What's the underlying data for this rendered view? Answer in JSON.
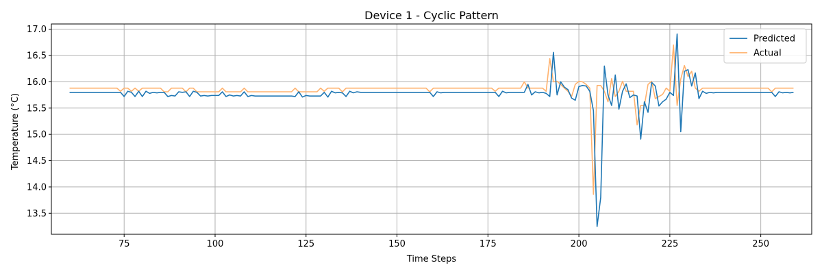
{
  "chart_data": {
    "type": "line",
    "title": "Device 1 - Cyclic Pattern",
    "xlabel": "Time Steps",
    "ylabel": "Temperature (°C)",
    "xlim": [
      55,
      264
    ],
    "ylim": [
      13.1,
      17.1
    ],
    "xticks": [
      75,
      100,
      125,
      150,
      175,
      200,
      225,
      250
    ],
    "yticks": [
      13.5,
      14.0,
      14.5,
      15.0,
      15.5,
      16.0,
      16.5,
      17.0
    ],
    "grid": true,
    "legend_position": "top-right",
    "series": [
      {
        "name": "Predicted",
        "color": "#1f77b4",
        "points": [
          [
            60,
            15.8
          ],
          [
            74,
            15.8
          ],
          [
            75,
            15.72
          ],
          [
            76,
            15.82
          ],
          [
            77,
            15.8
          ],
          [
            78,
            15.72
          ],
          [
            79,
            15.82
          ],
          [
            80,
            15.72
          ],
          [
            81,
            15.82
          ],
          [
            82,
            15.78
          ],
          [
            83,
            15.8
          ],
          [
            84,
            15.79
          ],
          [
            85,
            15.8
          ],
          [
            86,
            15.8
          ],
          [
            87,
            15.72
          ],
          [
            88,
            15.74
          ],
          [
            89,
            15.73
          ],
          [
            90,
            15.81
          ],
          [
            91,
            15.8
          ],
          [
            92,
            15.81
          ],
          [
            93,
            15.72
          ],
          [
            94,
            15.82
          ],
          [
            95,
            15.8
          ],
          [
            96,
            15.73
          ],
          [
            97,
            15.74
          ],
          [
            98,
            15.73
          ],
          [
            99,
            15.74
          ],
          [
            101,
            15.74
          ],
          [
            102,
            15.81
          ],
          [
            103,
            15.72
          ],
          [
            104,
            15.75
          ],
          [
            105,
            15.73
          ],
          [
            106,
            15.74
          ],
          [
            107,
            15.73
          ],
          [
            108,
            15.81
          ],
          [
            109,
            15.72
          ],
          [
            110,
            15.74
          ],
          [
            111,
            15.73
          ],
          [
            121,
            15.73
          ],
          [
            122,
            15.72
          ],
          [
            123,
            15.81
          ],
          [
            124,
            15.71
          ],
          [
            125,
            15.74
          ],
          [
            126,
            15.73
          ],
          [
            129,
            15.73
          ],
          [
            130,
            15.8
          ],
          [
            131,
            15.71
          ],
          [
            132,
            15.82
          ],
          [
            133,
            15.79
          ],
          [
            134,
            15.8
          ],
          [
            135,
            15.79
          ],
          [
            136,
            15.72
          ],
          [
            137,
            15.82
          ],
          [
            138,
            15.79
          ],
          [
            139,
            15.81
          ],
          [
            140,
            15.8
          ],
          [
            159,
            15.8
          ],
          [
            160,
            15.72
          ],
          [
            161,
            15.81
          ],
          [
            162,
            15.79
          ],
          [
            163,
            15.8
          ],
          [
            176,
            15.8
          ],
          [
            177,
            15.8
          ],
          [
            178,
            15.72
          ],
          [
            179,
            15.82
          ],
          [
            180,
            15.79
          ],
          [
            181,
            15.8
          ],
          [
            185,
            15.8
          ],
          [
            186,
            15.95
          ],
          [
            187,
            15.75
          ],
          [
            188,
            15.81
          ],
          [
            189,
            15.79
          ],
          [
            190,
            15.8
          ],
          [
            191,
            15.78
          ],
          [
            192,
            15.72
          ],
          [
            193,
            16.56
          ],
          [
            194,
            15.75
          ],
          [
            195,
            16.0
          ],
          [
            196,
            15.9
          ],
          [
            197,
            15.85
          ],
          [
            198,
            15.69
          ],
          [
            199,
            15.65
          ],
          [
            200,
            15.91
          ],
          [
            201,
            15.93
          ],
          [
            202,
            15.92
          ],
          [
            203,
            15.82
          ],
          [
            204,
            15.45
          ],
          [
            205,
            13.25
          ],
          [
            206,
            13.8
          ],
          [
            207,
            16.3
          ],
          [
            208,
            15.75
          ],
          [
            209,
            15.55
          ],
          [
            210,
            16.13
          ],
          [
            211,
            15.48
          ],
          [
            212,
            15.82
          ],
          [
            213,
            15.96
          ],
          [
            214,
            15.7
          ],
          [
            215,
            15.75
          ],
          [
            216,
            15.73
          ],
          [
            217,
            14.91
          ],
          [
            218,
            15.62
          ],
          [
            219,
            15.42
          ],
          [
            220,
            15.99
          ],
          [
            221,
            15.92
          ],
          [
            222,
            15.54
          ],
          [
            223,
            15.62
          ],
          [
            224,
            15.67
          ],
          [
            225,
            15.8
          ],
          [
            226,
            15.74
          ],
          [
            227,
            16.91
          ],
          [
            228,
            15.05
          ],
          [
            229,
            16.2
          ],
          [
            230,
            16.23
          ],
          [
            231,
            15.92
          ],
          [
            232,
            16.17
          ],
          [
            233,
            15.68
          ],
          [
            234,
            15.82
          ],
          [
            235,
            15.78
          ],
          [
            236,
            15.8
          ],
          [
            237,
            15.79
          ],
          [
            238,
            15.8
          ],
          [
            252,
            15.8
          ],
          [
            253,
            15.8
          ],
          [
            254,
            15.72
          ],
          [
            255,
            15.81
          ],
          [
            256,
            15.79
          ],
          [
            257,
            15.8
          ],
          [
            258,
            15.79
          ],
          [
            259,
            15.8
          ]
        ]
      },
      {
        "name": "Actual",
        "color": "#ffb26e",
        "points": [
          [
            60,
            15.88
          ],
          [
            73,
            15.88
          ],
          [
            74,
            15.82
          ],
          [
            75,
            15.88
          ],
          [
            76,
            15.88
          ],
          [
            77,
            15.82
          ],
          [
            78,
            15.88
          ],
          [
            79,
            15.82
          ],
          [
            80,
            15.88
          ],
          [
            85,
            15.88
          ],
          [
            86,
            15.81
          ],
          [
            87,
            15.81
          ],
          [
            88,
            15.88
          ],
          [
            91,
            15.88
          ],
          [
            92,
            15.81
          ],
          [
            93,
            15.88
          ],
          [
            94,
            15.88
          ],
          [
            95,
            15.81
          ],
          [
            101,
            15.81
          ],
          [
            102,
            15.88
          ],
          [
            103,
            15.81
          ],
          [
            107,
            15.81
          ],
          [
            108,
            15.88
          ],
          [
            109,
            15.81
          ],
          [
            121,
            15.81
          ],
          [
            122,
            15.88
          ],
          [
            123,
            15.81
          ],
          [
            128,
            15.81
          ],
          [
            129,
            15.88
          ],
          [
            130,
            15.82
          ],
          [
            131,
            15.88
          ],
          [
            134,
            15.88
          ],
          [
            135,
            15.81
          ],
          [
            136,
            15.88
          ],
          [
            158,
            15.88
          ],
          [
            159,
            15.81
          ],
          [
            160,
            15.88
          ],
          [
            176,
            15.88
          ],
          [
            177,
            15.82
          ],
          [
            178,
            15.88
          ],
          [
            184,
            15.88
          ],
          [
            185,
            16.0
          ],
          [
            186,
            15.88
          ],
          [
            190,
            15.88
          ],
          [
            191,
            15.82
          ],
          [
            192,
            16.44
          ],
          [
            193,
            16.0
          ],
          [
            194,
            16.01
          ],
          [
            195,
            15.95
          ],
          [
            196,
            15.88
          ],
          [
            197,
            15.82
          ],
          [
            198,
            15.72
          ],
          [
            199,
            15.95
          ],
          [
            200,
            16.01
          ],
          [
            201,
            16.0
          ],
          [
            202,
            15.95
          ],
          [
            203,
            15.88
          ],
          [
            204,
            13.86
          ],
          [
            205,
            15.93
          ],
          [
            206,
            15.93
          ],
          [
            207,
            15.82
          ],
          [
            208,
            15.62
          ],
          [
            209,
            16.06
          ],
          [
            210,
            15.72
          ],
          [
            211,
            15.82
          ],
          [
            212,
            16.01
          ],
          [
            213,
            15.82
          ],
          [
            214,
            15.82
          ],
          [
            215,
            15.82
          ],
          [
            216,
            15.18
          ],
          [
            217,
            15.55
          ],
          [
            218,
            15.55
          ],
          [
            219,
            15.95
          ],
          [
            220,
            16.01
          ],
          [
            221,
            15.68
          ],
          [
            222,
            15.72
          ],
          [
            223,
            15.76
          ],
          [
            224,
            15.88
          ],
          [
            225,
            15.82
          ],
          [
            226,
            16.7
          ],
          [
            227,
            15.55
          ],
          [
            228,
            16.05
          ],
          [
            229,
            16.31
          ],
          [
            230,
            16.1
          ],
          [
            231,
            16.2
          ],
          [
            232,
            15.88
          ],
          [
            233,
            15.82
          ],
          [
            234,
            15.88
          ],
          [
            252,
            15.88
          ],
          [
            253,
            15.81
          ],
          [
            254,
            15.88
          ],
          [
            259,
            15.88
          ]
        ]
      }
    ]
  }
}
